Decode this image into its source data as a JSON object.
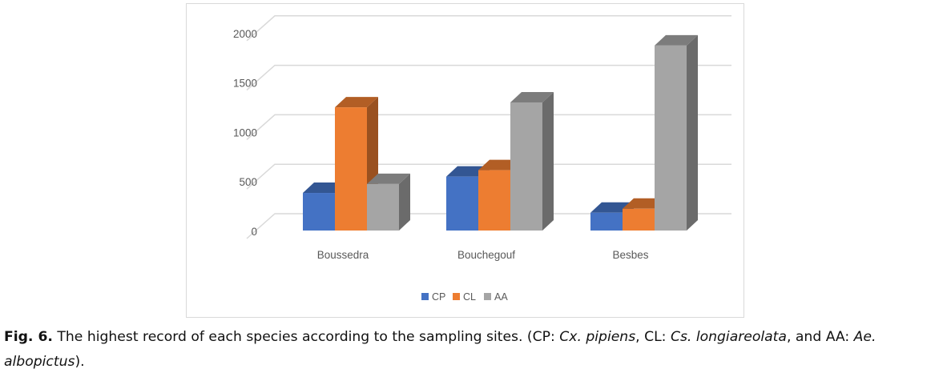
{
  "chart_data": {
    "type": "bar",
    "style": "3d-clustered-column",
    "title": "",
    "xlabel": "",
    "ylabel": "",
    "categories": [
      "Boussedra",
      "Bouchegouf",
      "Besbes"
    ],
    "series": [
      {
        "name": "CP",
        "values": [
          380,
          545,
          180
        ],
        "color": "#4472c4"
      },
      {
        "name": "CL",
        "values": [
          1245,
          610,
          220
        ],
        "color": "#ed7d31"
      },
      {
        "name": "AA",
        "values": [
          470,
          1295,
          1870
        ],
        "color": "#a5a5a5"
      }
    ],
    "ylim": [
      0,
      2000
    ],
    "yticks": [
      "0",
      "500",
      "1000",
      "1500",
      "2000"
    ],
    "grid": true,
    "legend_position": "bottom"
  },
  "caption": {
    "label": "Fig. 6.",
    "text_1": " The highest record of each species according to the sampling sites. (CP: ",
    "species_cp": "Cx. pipiens",
    "text_2": ", CL: ",
    "species_cl": "Cs. longiareolata",
    "text_3": ", and AA: ",
    "species_aa": "Ae. albopictus",
    "text_4": ")."
  }
}
